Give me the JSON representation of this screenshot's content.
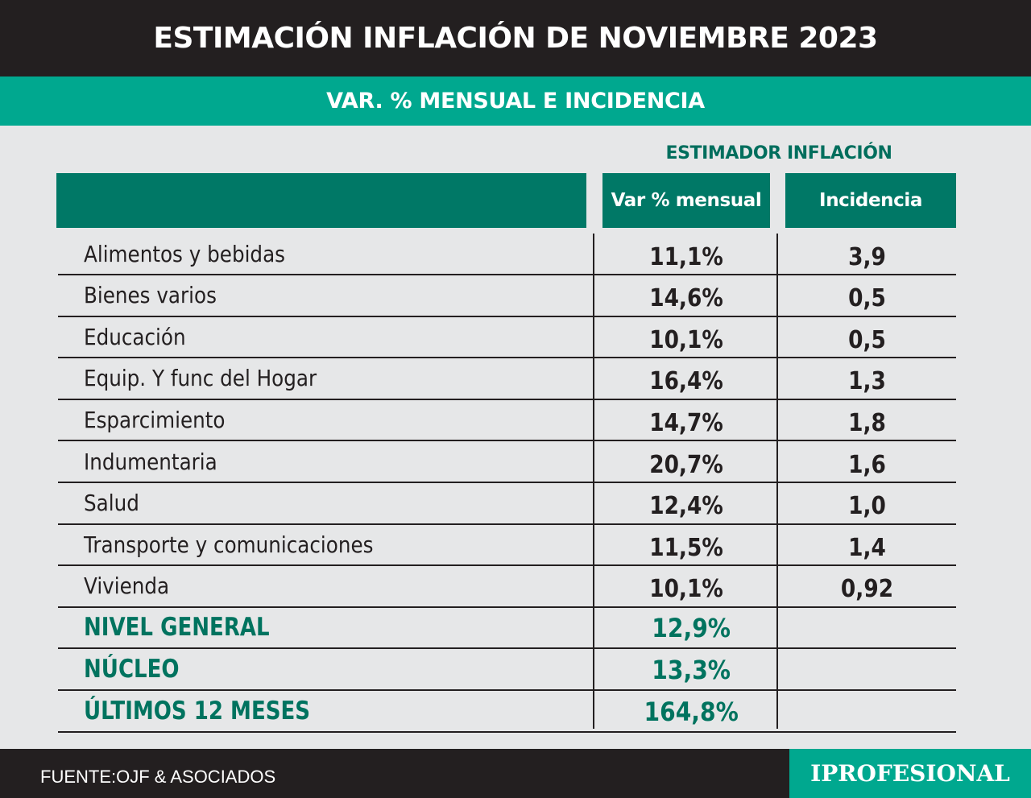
{
  "header": {
    "title": "ESTIMACIÓN INFLACIÓN DE NOVIEMBRE 2023",
    "subtitle": "VAR. % MENSUAL E INCIDENCIA"
  },
  "table": {
    "group_label": "ESTIMADOR INFLACIÓN",
    "columns": [
      "",
      "Var % mensual",
      "Incidencia"
    ],
    "rows": [
      {
        "name": "Alimentos y bebidas",
        "var": "11,1%",
        "inc": "3,9"
      },
      {
        "name": "Bienes varios",
        "var": "14,6%",
        "inc": "0,5"
      },
      {
        "name": "Educación",
        "var": "10,1%",
        "inc": "0,5"
      },
      {
        "name": "Equip. Y func del Hogar",
        "var": "16,4%",
        "inc": "1,3"
      },
      {
        "name": "Esparcimiento",
        "var": "14,7%",
        "inc": "1,8"
      },
      {
        "name": "Indumentaria",
        "var": "20,7%",
        "inc": "1,6"
      },
      {
        "name": "Salud",
        "var": "12,4%",
        "inc": "1,0"
      },
      {
        "name": "Transporte y comunicaciones",
        "var": "11,5%",
        "inc": "1,4"
      },
      {
        "name": "Vivienda",
        "var": "10,1%",
        "inc": "0,92"
      }
    ],
    "summary": [
      {
        "name": "NIVEL GENERAL",
        "var": "12,9%",
        "inc": ""
      },
      {
        "name": "NÚCLEO",
        "var": "13,3%",
        "inc": ""
      },
      {
        "name": "ÚLTIMOS 12 MESES",
        "var": "164,8%",
        "inc": ""
      }
    ]
  },
  "footer": {
    "source": "FUENTE:OJF & ASOCIADOS",
    "brand": "IPROFESIONAL"
  },
  "colors": {
    "dark": "#231f20",
    "teal": "#00a88f",
    "dark_teal": "#007866",
    "background": "#e6e7e8"
  }
}
